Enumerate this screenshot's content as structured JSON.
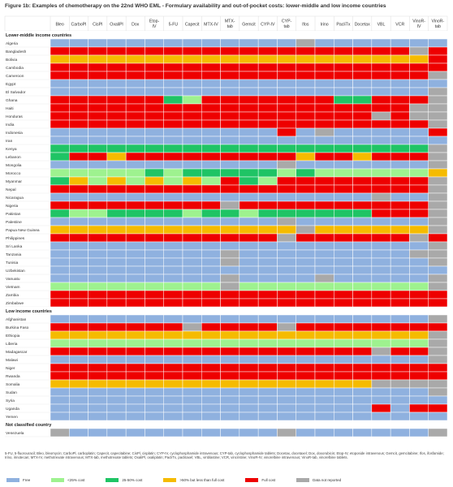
{
  "title": "Figure 1b: Examples of chemotherapy on the 22nd WHO EML - Formulary availability and out-of-pocket costs: lower-middle and low income countries",
  "footnote": "5-FU, 5-fluorouracil; Bleo, bleomycin; CarboPl, carboplatin; Capecit, capecitabine; CisPl, cisplatin; CYP-IV, cyclophosphamide intravenous; CYP-tab, cyclophosphamide tablets; Docetax, docetaxel; Dox, doxorubicin; Etop-IV, etoposide intravenous; Gemcit, gemcitabine; Ifos, ifosfamide; Irino, irinotecan; MTX-IV, methotrexate intravenous; MTX-tab, methotrexate tablets; OxaliPl, oxaliplatin; PacliTx, paclitaxel; VBL, vinblastine; VCR, vincristine; VinoR-IV, vinorelbine intravenous; VinoR-tab, vinorelbine tablets.",
  "chart_data": {
    "type": "heatmap",
    "columns": [
      "Bleo",
      "CarboPl",
      "CisPl",
      "OxaliPl",
      "Dox",
      "Etop-IV",
      "5-FU",
      "Capecit",
      "MTX-IV",
      "MTX-tab",
      "Gemcit",
      "CYP-IV",
      "CYP-tab",
      "Ifos",
      "Irino",
      "PacliTx",
      "Docetax",
      "VBL",
      "VCR",
      "VinoR-IV",
      "VinoR-tab"
    ],
    "categories": [
      {
        "key": "F",
        "label": "Free",
        "color": "#8fb1df"
      },
      {
        "key": "L",
        "label": "<25% cost",
        "color": "#9ef28f"
      },
      {
        "key": "M",
        "label": "25-50% cost",
        "color": "#1fc465"
      },
      {
        "key": "H",
        "label": ">50% but less than full cost",
        "color": "#f5bb00"
      },
      {
        "key": "C",
        "label": "Full cost",
        "color": "#ee0000"
      },
      {
        "key": "N",
        "label": "Data not reported",
        "color": "#a9a9a9"
      }
    ],
    "groups": [
      {
        "label": "Lower-middle income countries",
        "rows": [
          {
            "country": "Algeria",
            "cells": "FFFFFFFFFFFFFNFFFFFFF"
          },
          {
            "country": "Bangladesh",
            "cells": "CCCCCCCCCCCCCCCCCCCNC"
          },
          {
            "country": "Bolivia",
            "cells": "HHHHHHHHHHHHHHHHHHHHC"
          },
          {
            "country": "Cambodia",
            "cells": "CCCCCCCCCCCCCCCCCCCCC"
          },
          {
            "country": "Cameroon",
            "cells": "CCCCCCCCCCCCCCCCCCCCN"
          },
          {
            "country": "Egypt",
            "cells": "FFFFFFFFFFFFFFFFFFFFF"
          },
          {
            "country": "El Salvador",
            "cells": "FFFFFFFFFFFFFFFFFFFFN"
          },
          {
            "country": "Ghana",
            "cells": "CCCCCCMLCCCCCCCMMCCCN"
          },
          {
            "country": "Haiti",
            "cells": "CCCCCCCCCCCCCCCCCCCNN"
          },
          {
            "country": "Honduras",
            "cells": "CCCCCCCCCCCCCCCCCNCNN"
          },
          {
            "country": "India",
            "cells": "CCCCCCCCCCCCCCCCCCCCN"
          },
          {
            "country": "Indonesia",
            "cells": "FFFFFFFFFFFFCFNFFFFFC"
          },
          {
            "country": "Iran",
            "cells": "FFFFFFFFFFFFFFFFFFFFF"
          },
          {
            "country": "Kenya",
            "cells": "MMMMMMMMMMMMMMMMMMMMN"
          },
          {
            "country": "Lebanon",
            "cells": "MCCHCCCCCCCCCHCCHCCCN"
          },
          {
            "country": "Mongolia",
            "cells": "FFFFFFFFFFFFNFFFFFFFN"
          },
          {
            "country": "Morocco",
            "cells": "LLLLLMLMMMMMLMLLLLLLH"
          },
          {
            "country": "Myanmar",
            "cells": "MHLHLHLHLCMLCCCCCCCCN"
          },
          {
            "country": "Nepal",
            "cells": "CCCCCCCCCCCCCCCCCCCCN"
          },
          {
            "country": "Nicaragua",
            "cells": "FFFFFFFFFFFFFFFFFNFFN"
          },
          {
            "country": "Nigeria",
            "cells": "CCCCCCCCCNCCCCCCCCCCN"
          },
          {
            "country": "Pakistan",
            "cells": "MLLMMMMLMMLMMMMMMCCCN"
          },
          {
            "country": "Palestine",
            "cells": "FFFFFFFFFFFFNFFFFFFFN"
          },
          {
            "country": "Papua New Guinea",
            "cells": "HHHHHHHHHHHHHNHHHHHHN"
          },
          {
            "country": "Philippines",
            "cells": "CCCCCCCCCCCCNCCCCCCNC"
          },
          {
            "country": "Sri Lanka",
            "cells": "FFFFFFFFFFFFFFFFFFFFN"
          },
          {
            "country": "Tanzania",
            "cells": "FFFFFFFFFNFFFFFFFFFNN"
          },
          {
            "country": "Tunisia",
            "cells": "FFFFFFFFFNFFFFFFFFFFN"
          },
          {
            "country": "Uzbekistan",
            "cells": "FFFFFFFFFFFFFFFFFFFFF"
          },
          {
            "country": "Vanuatu",
            "cells": "FFFFFFFFFNFFFFNFFFFFN"
          },
          {
            "country": "Vietnam",
            "cells": "LLLLLLLLLNLLLLLLLLLLN"
          },
          {
            "country": "Zambia",
            "cells": "CCCCCCCCCCCCCCCCCCCCC"
          },
          {
            "country": "Zimbabwe",
            "cells": "CCCCCCCCCCCCCCCCCCCCC"
          }
        ]
      },
      {
        "label": "Low income countries",
        "rows": [
          {
            "country": "Afghanistan",
            "cells": "FFFFFFFFFFFFFFFFFFFFN"
          },
          {
            "country": "Burkina Faso",
            "cells": "CCCCCCCNCCCCNCCCCCCCC"
          },
          {
            "country": "Ethiopia",
            "cells": "HHHHHHHHHHHHHHHHHHHHN"
          },
          {
            "country": "Liberia",
            "cells": "LLLLLLLLLLLLLLLLLLLLN"
          },
          {
            "country": "Madagascar",
            "cells": "CCCCCCCCCCCCCCCCCNCCN"
          },
          {
            "country": "Malawi",
            "cells": "FFFFFFFFFFFFFFFFFFFFN"
          },
          {
            "country": "Niger",
            "cells": "CCCCCCCCCCCCCCCCCCCCC"
          },
          {
            "country": "Rwanda",
            "cells": "CCCCCCCCCCCCCCCCCCCCC"
          },
          {
            "country": "Somalia",
            "cells": "HHHHHHHHHHHHHHHHHNNNN"
          },
          {
            "country": "Sudan",
            "cells": "FFFFFFFFFFFFFFFFFFFFN"
          },
          {
            "country": "Syria",
            "cells": "FFFFFFFFFFFFFFFFFFFFF"
          },
          {
            "country": "Uganda",
            "cells": "FFFFFFFFFFFFFFFFFCFCC"
          },
          {
            "country": "Yemen",
            "cells": "FFFFFFFFFFFFFFFFFFFFF"
          }
        ]
      },
      {
        "label": "Not classified country",
        "rows": [
          {
            "country": "Venezuela",
            "cells": "NFFFFFFFFFFFNFFFFFFFN"
          }
        ]
      }
    ]
  }
}
